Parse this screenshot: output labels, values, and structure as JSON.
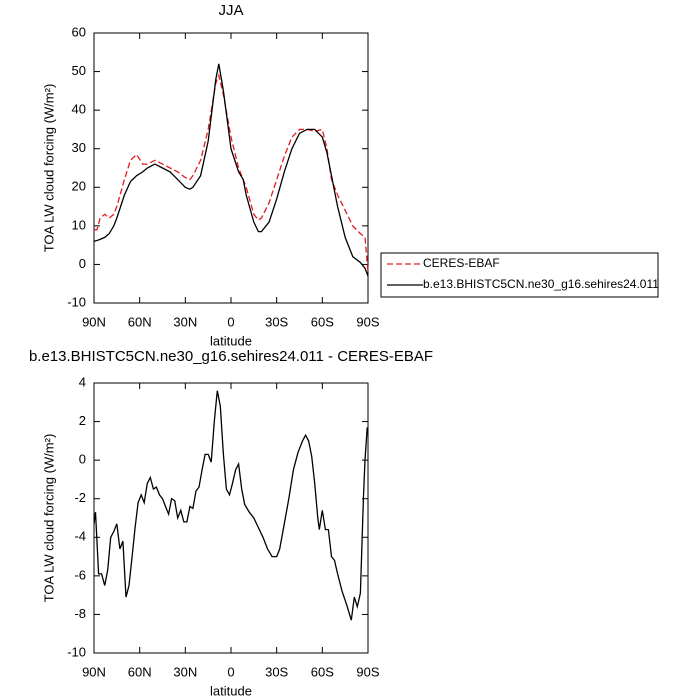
{
  "chart_data": [
    {
      "type": "line",
      "title": "JJA",
      "xlabel": "latitude",
      "ylabel": "TOA LW cloud forcing (W/m²)",
      "x": [
        90,
        88,
        86,
        83,
        80,
        77,
        75,
        70,
        66,
        62,
        58,
        55,
        50,
        45,
        40,
        35,
        30,
        27,
        25,
        20,
        15,
        10,
        8,
        5,
        0,
        -5,
        -8,
        -10,
        -15,
        -18,
        -20,
        -25,
        -30,
        -35,
        -40,
        -45,
        -50,
        -55,
        -60,
        -63,
        -66,
        -70,
        -75,
        -80,
        -85,
        -88,
        -90
      ],
      "series": [
        {
          "name": "CERES-EBAF",
          "color": "#e41a1c",
          "dash": true,
          "values": [
            9,
            9,
            12,
            13,
            12,
            13,
            15,
            22,
            27,
            28.5,
            26,
            26,
            27,
            26,
            25,
            24,
            22.5,
            22,
            23,
            27,
            35,
            47,
            49,
            44,
            33,
            25,
            22,
            20,
            13,
            11.5,
            12,
            16,
            22,
            28,
            33,
            35,
            35,
            34.5,
            35,
            30,
            22,
            18,
            14,
            10,
            8,
            7,
            -2
          ]
        },
        {
          "name": "b.e13.BHISTC5CN.ne30_g16.sehires24.011",
          "color": "#000000",
          "dash": false,
          "values": [
            6,
            6.2,
            6.5,
            7,
            8,
            10,
            12,
            18,
            21.5,
            23,
            24,
            25,
            26,
            25,
            24,
            22,
            20,
            19.5,
            20,
            23,
            32,
            48,
            52,
            45,
            30,
            24,
            22,
            18,
            11,
            8.5,
            8.5,
            11,
            17,
            24,
            30,
            34,
            35,
            35,
            33,
            29,
            23,
            15,
            7,
            2,
            0.5,
            -1,
            -3
          ]
        }
      ],
      "xlim": [
        90,
        -90
      ],
      "xticks": [
        {
          "value": 90,
          "label": "90N"
        },
        {
          "value": 60,
          "label": "60N"
        },
        {
          "value": 30,
          "label": "30N"
        },
        0,
        {
          "value": -30,
          "label": "30S"
        },
        {
          "value": -60,
          "label": "60S"
        },
        {
          "value": -90,
          "label": "90S"
        }
      ],
      "ylim": [
        -10,
        60
      ],
      "yticks": [
        -10,
        0,
        10,
        20,
        30,
        40,
        50,
        60
      ],
      "legend": "right"
    },
    {
      "type": "line",
      "title": "b.e13.BHISTC5CN.ne30_g16.sehires24.011 - CERES-EBAF",
      "xlabel": "latitude",
      "ylabel": "TOA LW cloud forcing (W/m²)",
      "x": [
        90,
        89,
        87,
        85,
        83,
        81,
        79,
        77,
        75,
        73,
        71,
        69,
        67,
        65,
        63,
        61,
        59,
        57,
        55,
        53,
        51,
        49,
        47,
        45,
        43,
        41,
        39,
        37,
        35,
        33,
        31,
        29,
        27,
        25,
        23,
        21,
        19,
        17,
        15,
        13,
        11,
        9,
        7,
        5,
        3,
        1,
        -1,
        -3,
        -5,
        -7,
        -9,
        -12,
        -15,
        -18,
        -21,
        -24,
        -27,
        -30,
        -32,
        -35,
        -38,
        -41,
        -44,
        -47,
        -49,
        -51,
        -53,
        -55,
        -57,
        -58,
        -60,
        -62,
        -64,
        -66,
        -68,
        -70,
        -73,
        -76,
        -79,
        -81,
        -83,
        -85,
        -87,
        -88,
        -89.5
      ],
      "series": [
        {
          "color": "#000000",
          "dash": false,
          "values": [
            -3.3,
            -2.7,
            -5.9,
            -5.9,
            -6.5,
            -5.7,
            -4.0,
            -3.7,
            -3.3,
            -4.6,
            -4.2,
            -7.1,
            -6.5,
            -5.0,
            -3.5,
            -2.2,
            -1.8,
            -2.2,
            -1.2,
            -0.9,
            -1.5,
            -1.4,
            -1.8,
            -2.0,
            -2.4,
            -2.8,
            -2.0,
            -2.1,
            -3.0,
            -2.6,
            -3.2,
            -3.2,
            -2.4,
            -2.5,
            -1.6,
            -1.4,
            -0.5,
            0.3,
            0.3,
            -0.1,
            2.0,
            3.6,
            2.8,
            0.3,
            -1.5,
            -1.8,
            -1.2,
            -0.5,
            -0.2,
            -1.5,
            -2.3,
            -2.7,
            -3.0,
            -3.5,
            -4.0,
            -4.6,
            -5.0,
            -5.0,
            -4.6,
            -3.3,
            -2.0,
            -0.5,
            0.4,
            1.0,
            1.3,
            1.0,
            0.2,
            -1.2,
            -3.0,
            -3.6,
            -2.6,
            -3.6,
            -3.6,
            -5.0,
            -5.2,
            -5.9,
            -6.8,
            -7.5,
            -8.3,
            -7.1,
            -7.6,
            -6.9,
            -2.0,
            0,
            1.7
          ]
        }
      ],
      "xlim": [
        90,
        -90
      ],
      "xticks": [
        {
          "value": 90,
          "label": "90N"
        },
        {
          "value": 60,
          "label": "60N"
        },
        {
          "value": 30,
          "label": "30N"
        },
        0,
        {
          "value": -30,
          "label": "30S"
        },
        {
          "value": -60,
          "label": "60S"
        },
        {
          "value": -90,
          "label": "90S"
        }
      ],
      "ylim": [
        -10,
        4
      ],
      "yticks": [
        -10,
        -8,
        -6,
        -4,
        -2,
        0,
        2,
        4
      ]
    }
  ]
}
